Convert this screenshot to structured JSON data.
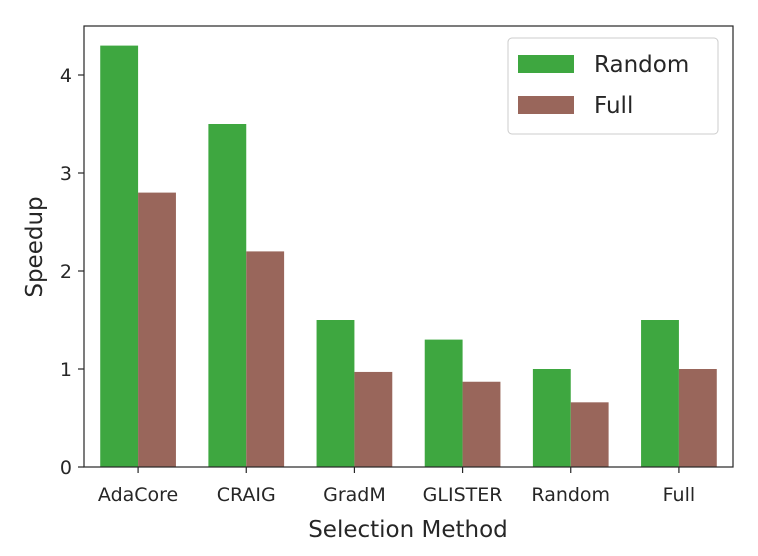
{
  "chart_data": {
    "type": "bar",
    "title": "",
    "xlabel": "Selection Method",
    "ylabel": "Speedup",
    "categories": [
      "AdaCore",
      "CRAIG",
      "GradM",
      "GLISTER",
      "Random",
      "Full"
    ],
    "series": [
      {
        "name": "Random",
        "color": "#3ea740",
        "values": [
          4.3,
          3.5,
          1.5,
          1.3,
          1.0,
          1.5
        ]
      },
      {
        "name": "Full",
        "color": "#99665b",
        "values": [
          2.8,
          2.2,
          0.97,
          0.87,
          0.66,
          1.0
        ]
      }
    ],
    "ylim": [
      0,
      4.5
    ],
    "yticks": [
      "0",
      "1",
      "2",
      "3",
      "4"
    ],
    "grid": false,
    "legend": "top-right"
  }
}
